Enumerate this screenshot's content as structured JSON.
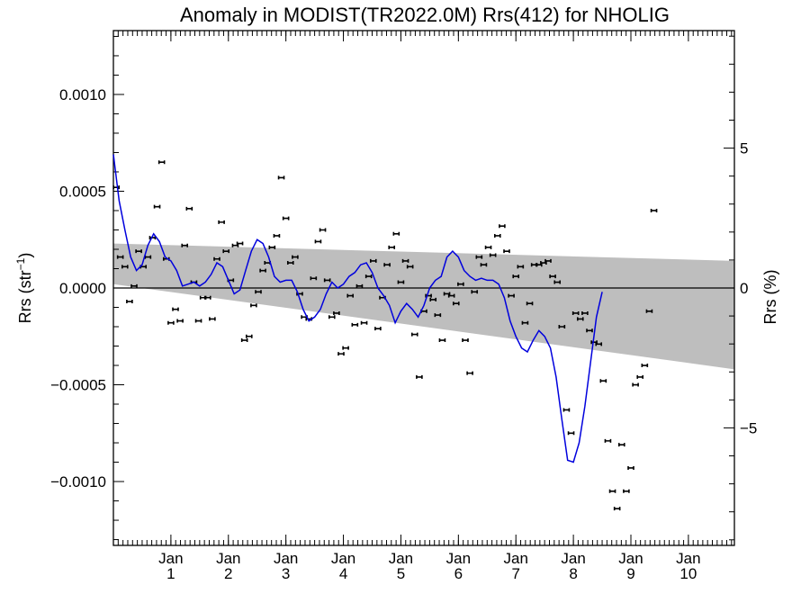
{
  "chart_data": {
    "type": "scatter",
    "title": "Anomaly in MODIST(TR2022.0M) Rrs(412) for NHOLIG",
    "ylabel": "Rrs (str",
    "ylabel_sup": "−1",
    "ylabel_close": ")",
    "y2label": "Rrs (%)",
    "xlim": [
      0,
      10.8
    ],
    "ylim": [
      -0.00133,
      0.00133
    ],
    "y2lim": [
      -9.2,
      9.2
    ],
    "x_ticks": [
      {
        "x": 1.0,
        "top": "Jan",
        "bottom": "1"
      },
      {
        "x": 2.0,
        "top": "Jan",
        "bottom": "2"
      },
      {
        "x": 3.0,
        "top": "Jan",
        "bottom": "3"
      },
      {
        "x": 4.0,
        "top": "Jan",
        "bottom": "4"
      },
      {
        "x": 5.0,
        "top": "Jan",
        "bottom": "5"
      },
      {
        "x": 6.0,
        "top": "Jan",
        "bottom": "6"
      },
      {
        "x": 7.0,
        "top": "Jan",
        "bottom": "7"
      },
      {
        "x": 8.0,
        "top": "Jan",
        "bottom": "8"
      },
      {
        "x": 9.0,
        "top": "Jan",
        "bottom": "9"
      },
      {
        "x": 10.0,
        "top": "Jan",
        "bottom": "10"
      }
    ],
    "y_ticks": [
      {
        "v": 0.001,
        "label": "0.0010"
      },
      {
        "v": 0.0005,
        "label": "0.0005"
      },
      {
        "v": 0.0,
        "label": "0.0000"
      },
      {
        "v": -0.0005,
        "label": "−0.0005"
      },
      {
        "v": -0.001,
        "label": "−0.0010"
      }
    ],
    "y2_ticks": [
      {
        "v": 5,
        "label": "5"
      },
      {
        "v": 0,
        "label": "0"
      },
      {
        "v": -5,
        "label": "−5"
      }
    ],
    "band": {
      "upper": [
        [
          0.0,
          0.00023
        ],
        [
          10.8,
          0.00014
        ]
      ],
      "lower": [
        [
          0.0,
          2e-05
        ],
        [
          10.8,
          -0.00042
        ]
      ],
      "color": "#bebebe"
    },
    "zero_line": true,
    "series": [
      {
        "kind": "points",
        "color": "#000000",
        "points": [
          [
            0.05,
            0.00052
          ],
          [
            0.12,
            0.00016
          ],
          [
            0.2,
            0.00011
          ],
          [
            0.28,
            -7e-05
          ],
          [
            0.36,
            1e-05
          ],
          [
            0.44,
            0.00019
          ],
          [
            0.52,
            0.00011
          ],
          [
            0.6,
            0.00016
          ],
          [
            0.68,
            0.00026
          ],
          [
            0.76,
            0.00042
          ],
          [
            0.84,
            0.00065
          ],
          [
            0.92,
            0.00015
          ],
          [
            1.0,
            -0.00018
          ],
          [
            1.08,
            -0.00011
          ],
          [
            1.16,
            -0.00017
          ],
          [
            1.24,
            0.00022
          ],
          [
            1.32,
            0.00041
          ],
          [
            1.4,
            3e-05
          ],
          [
            1.48,
            -0.00017
          ],
          [
            1.56,
            -5e-05
          ],
          [
            1.64,
            -5e-05
          ],
          [
            1.72,
            -0.00016
          ],
          [
            1.8,
            0.00015
          ],
          [
            1.88,
            0.00034
          ],
          [
            1.96,
            0.00019
          ],
          [
            2.04,
            4e-05
          ],
          [
            2.12,
            0.00022
          ],
          [
            2.2,
            0.00023
          ],
          [
            2.28,
            -0.00027
          ],
          [
            2.36,
            -0.00025
          ],
          [
            2.44,
            -9e-05
          ],
          [
            2.52,
            -2e-05
          ],
          [
            2.6,
            9e-05
          ],
          [
            2.68,
            0.00013
          ],
          [
            2.76,
            0.00021
          ],
          [
            2.84,
            0.00027
          ],
          [
            2.92,
            0.00057
          ],
          [
            3.0,
            0.00036
          ],
          [
            3.08,
            0.00013
          ],
          [
            3.16,
            0.00016
          ],
          [
            3.24,
            -3e-05
          ],
          [
            3.32,
            -0.00015
          ],
          [
            3.4,
            -0.00016
          ],
          [
            3.48,
            5e-05
          ],
          [
            3.56,
            0.00024
          ],
          [
            3.64,
            0.0003
          ],
          [
            3.72,
            4e-05
          ],
          [
            3.8,
            -0.00015
          ],
          [
            3.88,
            -0.00013
          ],
          [
            3.96,
            -0.00034
          ],
          [
            4.04,
            -0.00031
          ],
          [
            4.12,
            -4e-05
          ],
          [
            4.2,
            -0.00019
          ],
          [
            4.28,
            1e-05
          ],
          [
            4.36,
            -0.00018
          ],
          [
            4.44,
            6e-05
          ],
          [
            4.52,
            0.00014
          ],
          [
            4.6,
            -0.00021
          ],
          [
            4.68,
            -5e-05
          ],
          [
            4.76,
            0.00012
          ],
          [
            4.84,
            0.00021
          ],
          [
            4.92,
            0.00028
          ],
          [
            5.0,
            3e-05
          ],
          [
            5.08,
            0.00014
          ],
          [
            5.16,
            0.00011
          ],
          [
            5.24,
            -0.00024
          ],
          [
            5.32,
            -0.00046
          ],
          [
            5.4,
            -0.00012
          ],
          [
            5.48,
            -4e-05
          ],
          [
            5.56,
            -6e-05
          ],
          [
            5.64,
            -0.00014
          ],
          [
            5.72,
            -0.00027
          ],
          [
            5.8,
            -3e-05
          ],
          [
            5.88,
            -4e-05
          ],
          [
            5.96,
            -8e-05
          ],
          [
            6.04,
            2e-05
          ],
          [
            6.12,
            -0.00027
          ],
          [
            6.2,
            -0.00044
          ],
          [
            6.28,
            -2e-05
          ],
          [
            6.36,
            0.00016
          ],
          [
            6.44,
            0.00012
          ],
          [
            6.52,
            0.00021
          ],
          [
            6.6,
            0.00017
          ],
          [
            6.68,
            0.00027
          ],
          [
            6.76,
            0.00032
          ],
          [
            6.84,
            0.00019
          ],
          [
            6.92,
            -4e-05
          ],
          [
            7.0,
            6e-05
          ],
          [
            7.08,
            0.00011
          ],
          [
            7.16,
            -0.00018
          ],
          [
            7.24,
            -8e-05
          ],
          [
            7.32,
            0.00012
          ],
          [
            7.4,
            0.00012
          ],
          [
            7.48,
            0.00013
          ],
          [
            7.56,
            0.00014
          ],
          [
            7.64,
            6e-05
          ],
          [
            7.72,
            3e-05
          ],
          [
            7.8,
            -0.0002
          ],
          [
            7.88,
            -0.00063
          ],
          [
            7.96,
            -0.00075
          ],
          [
            8.04,
            -0.00013
          ],
          [
            8.12,
            -0.00016
          ],
          [
            8.2,
            -0.00013
          ],
          [
            8.28,
            -0.00022
          ],
          [
            8.36,
            -0.00028
          ],
          [
            8.44,
            -0.00029
          ],
          [
            8.52,
            -0.00048
          ],
          [
            8.6,
            -0.00079
          ],
          [
            8.68,
            -0.00105
          ],
          [
            8.76,
            -0.00114
          ],
          [
            8.84,
            -0.00081
          ],
          [
            8.92,
            -0.00105
          ],
          [
            9.0,
            -0.00093
          ],
          [
            9.08,
            -0.0005
          ],
          [
            9.16,
            -0.00046
          ],
          [
            9.24,
            -0.0004
          ],
          [
            9.32,
            -0.00012
          ],
          [
            9.4,
            0.0004
          ]
        ]
      },
      {
        "kind": "line",
        "color": "#0000dd",
        "points": [
          [
            0.0,
            0.00069
          ],
          [
            0.1,
            0.00045
          ],
          [
            0.2,
            0.0003
          ],
          [
            0.3,
            0.00016
          ],
          [
            0.4,
            9e-05
          ],
          [
            0.5,
            0.00012
          ],
          [
            0.6,
            0.00022
          ],
          [
            0.7,
            0.00028
          ],
          [
            0.8,
            0.00024
          ],
          [
            0.9,
            0.00016
          ],
          [
            1.0,
            0.00014
          ],
          [
            1.1,
            9e-05
          ],
          [
            1.2,
            1e-05
          ],
          [
            1.3,
            2e-05
          ],
          [
            1.4,
            3e-05
          ],
          [
            1.5,
            1e-05
          ],
          [
            1.6,
            3e-05
          ],
          [
            1.7,
            7e-05
          ],
          [
            1.8,
            0.00013
          ],
          [
            1.9,
            0.00011
          ],
          [
            2.0,
            4e-05
          ],
          [
            2.1,
            -3e-05
          ],
          [
            2.2,
            -1e-05
          ],
          [
            2.3,
            9e-05
          ],
          [
            2.4,
            0.00019
          ],
          [
            2.5,
            0.00025
          ],
          [
            2.6,
            0.00023
          ],
          [
            2.7,
            0.00016
          ],
          [
            2.8,
            6e-05
          ],
          [
            2.9,
            3e-05
          ],
          [
            3.0,
            4e-05
          ],
          [
            3.1,
            4e-05
          ],
          [
            3.2,
            -2e-05
          ],
          [
            3.3,
            -0.00011
          ],
          [
            3.4,
            -0.00017
          ],
          [
            3.5,
            -0.00015
          ],
          [
            3.6,
            -0.00011
          ],
          [
            3.7,
            -3e-05
          ],
          [
            3.8,
            3e-05
          ],
          [
            3.9,
            0.0
          ],
          [
            4.0,
            2e-05
          ],
          [
            4.1,
            6e-05
          ],
          [
            4.2,
            8e-05
          ],
          [
            4.3,
            0.00012
          ],
          [
            4.4,
            0.00013
          ],
          [
            4.5,
            8e-05
          ],
          [
            4.6,
            0.0
          ],
          [
            4.7,
            -4e-05
          ],
          [
            4.8,
            -9e-05
          ],
          [
            4.9,
            -0.00018
          ],
          [
            5.0,
            -0.00012
          ],
          [
            5.1,
            -8e-05
          ],
          [
            5.2,
            -0.00011
          ],
          [
            5.3,
            -0.00015
          ],
          [
            5.4,
            -9e-05
          ],
          [
            5.5,
            0.0
          ],
          [
            5.6,
            4e-05
          ],
          [
            5.7,
            6e-05
          ],
          [
            5.8,
            0.00016
          ],
          [
            5.9,
            0.00019
          ],
          [
            6.0,
            0.00016
          ],
          [
            6.1,
            9e-05
          ],
          [
            6.2,
            6e-05
          ],
          [
            6.3,
            4e-05
          ],
          [
            6.4,
            5e-05
          ],
          [
            6.5,
            4e-05
          ],
          [
            6.6,
            4e-05
          ],
          [
            6.7,
            2e-05
          ],
          [
            6.8,
            -5e-05
          ],
          [
            6.9,
            -0.00017
          ],
          [
            7.0,
            -0.00025
          ],
          [
            7.1,
            -0.00031
          ],
          [
            7.2,
            -0.00033
          ],
          [
            7.3,
            -0.00027
          ],
          [
            7.4,
            -0.00022
          ],
          [
            7.5,
            -0.00025
          ],
          [
            7.6,
            -0.00031
          ],
          [
            7.7,
            -0.00046
          ],
          [
            7.8,
            -0.00068
          ],
          [
            7.9,
            -0.00089
          ],
          [
            8.0,
            -0.0009
          ],
          [
            8.1,
            -0.0008
          ],
          [
            8.2,
            -0.00061
          ],
          [
            8.3,
            -0.00038
          ],
          [
            8.4,
            -0.00015
          ],
          [
            8.5,
            -2e-05
          ]
        ]
      }
    ]
  }
}
